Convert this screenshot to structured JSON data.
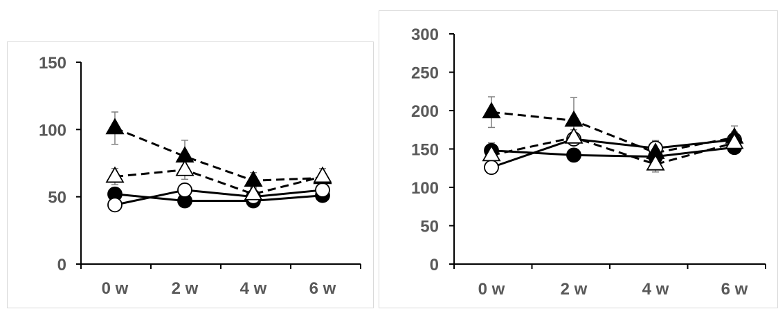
{
  "chart_data": [
    {
      "type": "line",
      "categories": [
        "0 w",
        "2 w",
        "4 w",
        "6 w"
      ],
      "ylim": [
        0,
        150
      ],
      "yticks": [
        0,
        50,
        100,
        150
      ],
      "grid": false,
      "series": [
        {
          "marker": "filled-circle",
          "line": "solid",
          "color": "#000000",
          "values": [
            52,
            47,
            47,
            51
          ]
        },
        {
          "marker": "open-circle",
          "line": "solid",
          "color": "#000000",
          "values": [
            44,
            55,
            50,
            55
          ]
        },
        {
          "marker": "filled-triangle",
          "line": "dashed",
          "color": "#000000",
          "values": [
            101,
            80,
            62,
            64
          ],
          "errors": [
            12,
            12,
            6,
            7
          ]
        },
        {
          "marker": "open-triangle",
          "line": "dashed",
          "color": "#000000",
          "values": [
            65,
            70,
            52,
            65
          ],
          "errors": [
            6,
            7,
            5,
            6
          ]
        }
      ]
    },
    {
      "type": "line",
      "categories": [
        "0 w",
        "2 w",
        "4 w",
        "6 w"
      ],
      "ylim": [
        0,
        300
      ],
      "yticks": [
        0,
        50,
        100,
        150,
        200,
        250,
        300
      ],
      "grid": false,
      "series": [
        {
          "marker": "filled-circle",
          "line": "solid",
          "color": "#000000",
          "values": [
            148,
            142,
            140,
            152
          ],
          "errors": [
            10,
            8,
            8,
            8
          ]
        },
        {
          "marker": "open-circle",
          "line": "solid",
          "color": "#000000",
          "values": [
            126,
            163,
            151,
            162
          ],
          "errors": [
            6,
            8,
            10,
            10
          ]
        },
        {
          "marker": "filled-triangle",
          "line": "dashed",
          "color": "#000000",
          "values": [
            198,
            187,
            145,
            165
          ],
          "errors": [
            20,
            30,
            15,
            15
          ]
        },
        {
          "marker": "open-triangle",
          "line": "dashed",
          "color": "#000000",
          "values": [
            142,
            165,
            130,
            158
          ],
          "errors": [
            10,
            10,
            10,
            10
          ]
        }
      ]
    }
  ]
}
